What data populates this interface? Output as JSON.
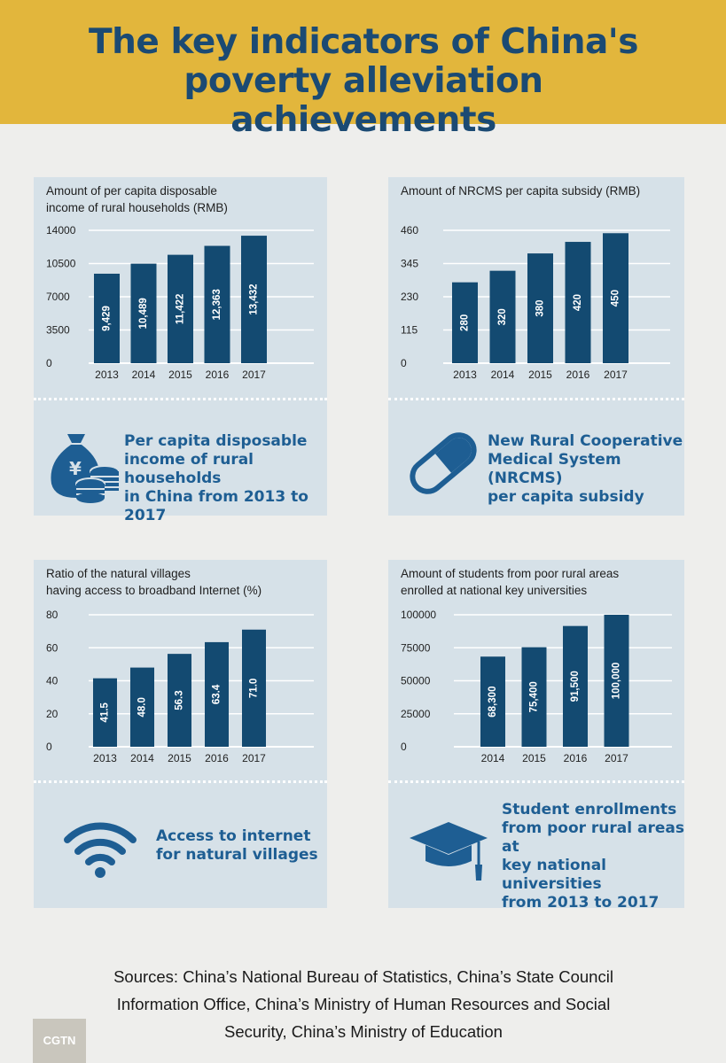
{
  "header": {
    "title": "The key indicators of China's poverty alleviation achievements"
  },
  "colors": {
    "header_bg": "#e2b63c",
    "title": "#1b4a73",
    "bar": "#134a71",
    "panel": "#d6e1e8",
    "accent_text": "#1e5e93"
  },
  "chart_data": [
    {
      "type": "bar",
      "title": "Amount of per capita disposable income of rural households (RMB)",
      "title_lines": [
        "Amount of per capita disposable",
        "income of rural households (RMB)"
      ],
      "categories": [
        "2013",
        "2014",
        "2015",
        "2016",
        "2017"
      ],
      "values": [
        9429,
        10489,
        11422,
        12363,
        13432
      ],
      "value_labels": [
        "9,429",
        "10,489",
        "11,422",
        "12,363",
        "13,432"
      ],
      "ylim": [
        0,
        14000
      ],
      "yticks": [
        0,
        3500,
        7000,
        10500,
        14000
      ],
      "ytick_labels": [
        "0",
        "3500",
        "7000",
        "10500",
        "14000"
      ]
    },
    {
      "type": "bar",
      "title": "Amount of NRCMS per capita subsidy (RMB)",
      "title_lines": [
        "Amount of NRCMS per capita subsidy (RMB)"
      ],
      "categories": [
        "2013",
        "2014",
        "2015",
        "2016",
        "2017"
      ],
      "values": [
        280,
        320,
        380,
        420,
        450
      ],
      "value_labels": [
        "280",
        "320",
        "380",
        "420",
        "450"
      ],
      "ylim": [
        0,
        460
      ],
      "yticks": [
        0,
        115,
        230,
        345,
        460
      ],
      "ytick_labels": [
        "0",
        "115",
        "230",
        "345",
        "460"
      ]
    },
    {
      "type": "bar",
      "title": "Ratio of the natural villages having access to broadband Internet (%)",
      "title_lines": [
        "Ratio of the natural villages",
        "having access to broadband Internet (%)"
      ],
      "categories": [
        "2013",
        "2014",
        "2015",
        "2016",
        "2017"
      ],
      "values": [
        41.5,
        48.0,
        56.3,
        63.4,
        71.0
      ],
      "value_labels": [
        "41.5",
        "48.0",
        "56.3",
        "63.4",
        "71.0"
      ],
      "ylim": [
        0,
        80
      ],
      "yticks": [
        0,
        20,
        40,
        60,
        80
      ],
      "ytick_labels": [
        "0",
        "20",
        "40",
        "60",
        "80"
      ]
    },
    {
      "type": "bar",
      "title": "Amount of students from poor rural areas enrolled at national key universities",
      "title_lines": [
        "Amount of students from poor rural areas",
        "enrolled at national key universities"
      ],
      "categories": [
        "2014",
        "2015",
        "2016",
        "2017"
      ],
      "values": [
        68300,
        75400,
        91500,
        100000
      ],
      "value_labels": [
        "68,300",
        "75,400",
        "91,500",
        "100,000"
      ],
      "ylim": [
        0,
        100000
      ],
      "yticks": [
        0,
        25000,
        50000,
        75000,
        100000
      ],
      "ytick_labels": [
        "0",
        "25000",
        "50000",
        "75000",
        "100000"
      ]
    }
  ],
  "panels": [
    {
      "icon": "money-bag-coins-icon",
      "description": "Per capita disposable\nincome of rural households\nin China from 2013 to 2017"
    },
    {
      "icon": "pill-capsule-icon",
      "description": "New Rural Cooperative\nMedical System (NRCMS)\nper capita subsidy"
    },
    {
      "icon": "wifi-icon",
      "description": "Access to internet\nfor natural villages"
    },
    {
      "icon": "graduation-cap-icon",
      "description": "Student enrollments\nfrom poor rural areas at\nkey national universities\nfrom 2013 to 2017"
    }
  ],
  "sources": "Sources: China’s National Bureau of Statistics, China’s State Council\nInformation Office, China’s Ministry of Human Resources and Social\nSecurity, China’s Ministry of Education",
  "logo": {
    "text": "CGTN"
  }
}
